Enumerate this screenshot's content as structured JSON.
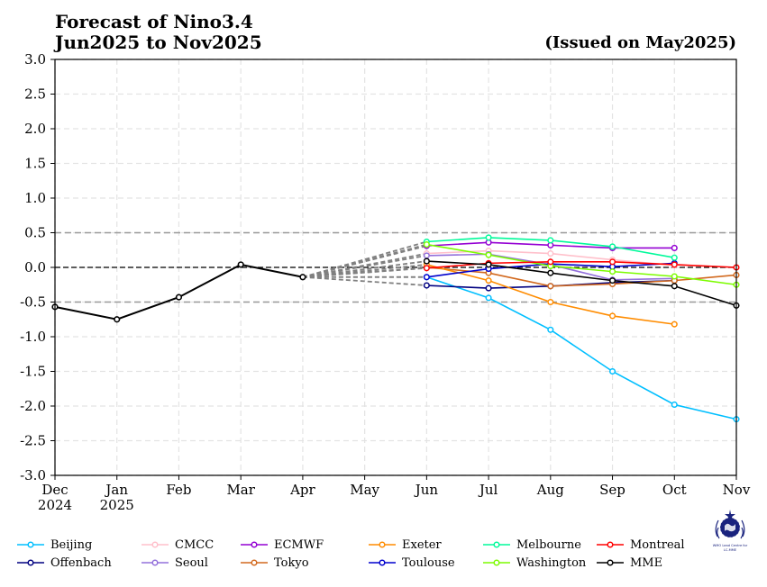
{
  "chart_data": {
    "type": "line",
    "title_line1": "Forecast of Nino3.4",
    "title_line2": "Jun2025 to Nov2025",
    "issued": "(Issued on May2025)",
    "x_labels": [
      {
        "line1": "Dec",
        "line2": "2024"
      },
      {
        "line1": "Jan",
        "line2": "2025"
      },
      {
        "line1": "Feb",
        "line2": ""
      },
      {
        "line1": "Mar",
        "line2": ""
      },
      {
        "line1": "Apr",
        "line2": ""
      },
      {
        "line1": "May",
        "line2": ""
      },
      {
        "line1": "Jun",
        "line2": ""
      },
      {
        "line1": "Jul",
        "line2": ""
      },
      {
        "line1": "Aug",
        "line2": ""
      },
      {
        "line1": "Sep",
        "line2": ""
      },
      {
        "line1": "Oct",
        "line2": ""
      },
      {
        "line1": "Nov",
        "line2": ""
      }
    ],
    "ylim": [
      -3.0,
      3.0
    ],
    "y_ticks": [
      "3.0",
      "2.5",
      "2.0",
      "1.5",
      "1.0",
      "0.5",
      "0.0",
      "-0.5",
      "-1.0",
      "-1.5",
      "-2.0",
      "-2.5",
      "-3.0"
    ],
    "reference_lines": [
      0.5,
      0.0,
      -0.5
    ],
    "observed": {
      "color": "#000000",
      "x": [
        0,
        1,
        2,
        3,
        4
      ],
      "values": [
        -0.57,
        -0.75,
        -0.43,
        0.04,
        -0.14
      ]
    },
    "connector_color": "#808080",
    "series": [
      {
        "name": "Beijing",
        "color": "#00bfff",
        "start": 6,
        "values": [
          -0.14,
          -0.44,
          -0.9,
          -1.5,
          -1.98,
          -2.19
        ]
      },
      {
        "name": "Offenbach",
        "color": "#000080",
        "start": 6,
        "values": [
          -0.26,
          -0.3,
          -0.27,
          -0.22,
          -0.19
        ]
      },
      {
        "name": "CMCC",
        "color": "#ffc0cb",
        "start": 6,
        "values": [
          0.2,
          0.24,
          0.2,
          0.11,
          0.03
        ]
      },
      {
        "name": "Seoul",
        "color": "#9370db",
        "start": 6,
        "values": [
          0.17,
          0.19,
          0.04,
          -0.18,
          -0.16
        ]
      },
      {
        "name": "ECMWF",
        "color": "#9400d3",
        "start": 6,
        "values": [
          0.31,
          0.36,
          0.32,
          0.28,
          0.28
        ]
      },
      {
        "name": "Tokyo",
        "color": "#d2691e",
        "start": 6,
        "values": [
          0.0,
          -0.08,
          -0.27,
          -0.24,
          -0.19,
          -0.11
        ]
      },
      {
        "name": "Exeter",
        "color": "#ff8c00",
        "start": 6,
        "values": [
          0.04,
          -0.19,
          -0.5,
          -0.7,
          -0.82
        ]
      },
      {
        "name": "Toulouse",
        "color": "#0000cd",
        "start": 6,
        "values": [
          -0.14,
          -0.02,
          0.05,
          0.01,
          0.06
        ]
      },
      {
        "name": "Melbourne",
        "color": "#00fa9a",
        "start": 6,
        "values": [
          0.37,
          0.43,
          0.39,
          0.3,
          0.14
        ]
      },
      {
        "name": "Washington",
        "color": "#7cfc00",
        "start": 6,
        "values": [
          0.33,
          0.18,
          0.02,
          -0.06,
          -0.13,
          -0.25
        ]
      },
      {
        "name": "Montreal",
        "color": "#ff0000",
        "start": 6,
        "values": [
          -0.01,
          0.06,
          0.08,
          0.08,
          0.04,
          0.0
        ]
      },
      {
        "name": "MME",
        "color": "#000000",
        "start": 6,
        "values": [
          0.09,
          0.04,
          -0.08,
          -0.19,
          -0.27,
          -0.55
        ]
      }
    ]
  },
  "logo": {
    "caption_line1": "WMO Lead Centre for",
    "caption_line2": "LC-MME"
  }
}
